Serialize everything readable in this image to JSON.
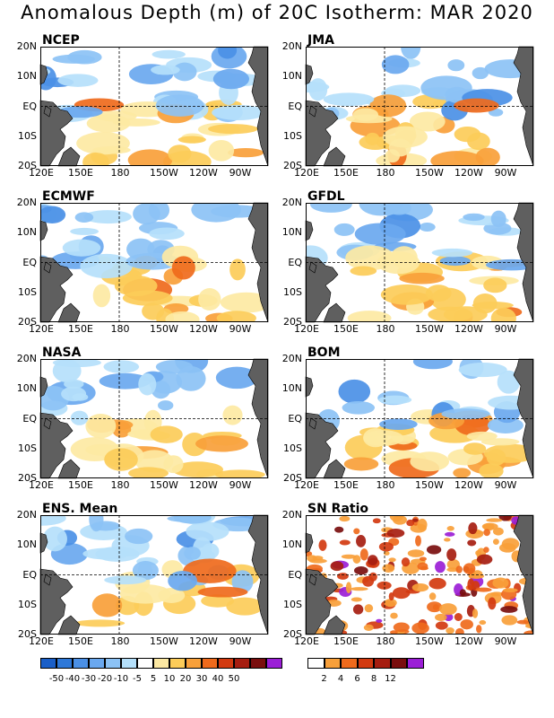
{
  "title": "Anomalous Depth (m) of 20C Isotherm: MAR 2020",
  "lat_labels": [
    "20N",
    "10N",
    "EQ",
    "10S",
    "20S"
  ],
  "lon_labels": [
    "120E",
    "150E",
    "180",
    "150W",
    "120W",
    "90W"
  ],
  "panels": [
    {
      "id": "ncep",
      "label": "NCEP",
      "warm": 0.35,
      "cool": 0.55
    },
    {
      "id": "jma",
      "label": "JMA",
      "warm": 0.65,
      "cool": 0.3
    },
    {
      "id": "ecmwf",
      "label": "ECMWF",
      "warm": 0.55,
      "cool": 0.45
    },
    {
      "id": "gfdl",
      "label": "GFDL",
      "warm": 0.75,
      "cool": 0.3
    },
    {
      "id": "nasa",
      "label": "NASA",
      "warm": 0.5,
      "cool": 0.5
    },
    {
      "id": "bom",
      "label": "BOM",
      "warm": 0.65,
      "cool": 0.35
    },
    {
      "id": "ens",
      "label": "ENS. Mean",
      "warm": 0.45,
      "cool": 0.5
    },
    {
      "id": "sn",
      "label": "SN Ratio",
      "warm": 0.6,
      "cool": 0.0
    }
  ],
  "anomaly_colorbar": {
    "labels": [
      "-50",
      "-40",
      "-30",
      "-20",
      "-10",
      "-5",
      "5",
      "10",
      "20",
      "30",
      "40",
      "50"
    ],
    "colors": [
      "#1a5fc8",
      "#2e78d8",
      "#4b90e6",
      "#6aa8ef",
      "#8cc2f5",
      "#b5e0fb",
      "#ffffff",
      "#fde9a3",
      "#fccc59",
      "#f8a03a",
      "#ef6a1c",
      "#d23a10",
      "#a61d10",
      "#7a0e0e",
      "#9b1ed6"
    ]
  },
  "sn_colorbar": {
    "labels": [
      "2",
      "4",
      "6",
      "8",
      "12"
    ],
    "colors": [
      "#ffffff",
      "#f8a03a",
      "#ef6a1c",
      "#d23a10",
      "#a61d10",
      "#7a0e0e",
      "#9b1ed6"
    ]
  }
}
